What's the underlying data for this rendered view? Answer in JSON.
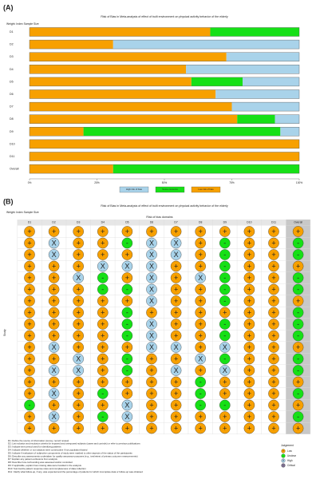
{
  "chart_data": [
    {
      "type": "bar",
      "panel_label": "(A)",
      "title": "Risk of Bias in Meta-analysis of effect of built environment on physical activity behavior of the elderly",
      "subtitle": "Weight: Index Sample Size",
      "categories": [
        "D1",
        "D2",
        "D3",
        "D4",
        "D5",
        "D6",
        "D7",
        "D8",
        "D9",
        "D10",
        "D11",
        "Overall"
      ],
      "series": [
        {
          "name": "High risk of bias",
          "color": "#a9d3ea",
          "values": [
            0,
            69,
            27,
            42,
            21,
            31,
            25,
            9,
            7,
            0,
            0,
            0
          ]
        },
        {
          "name": "Some concerns",
          "color": "#16e016",
          "values": [
            33,
            0,
            0,
            0,
            19,
            0,
            0,
            14,
            73,
            0,
            0,
            69
          ]
        },
        {
          "name": "Low risk of bias",
          "color": "#f7a000",
          "values": [
            67,
            31,
            73,
            58,
            60,
            69,
            75,
            77,
            20,
            100,
            100,
            31
          ]
        }
      ],
      "xlim": [
        0,
        100
      ],
      "xticks": [
        {
          "value": 0,
          "label": "0%"
        },
        {
          "value": 25,
          "label": "25%"
        },
        {
          "value": 50,
          "label": "50%"
        },
        {
          "value": 75,
          "label": "75%"
        },
        {
          "value": 100,
          "label": "100%"
        }
      ]
    },
    {
      "type": "traffic-light",
      "panel_label": "(B)",
      "title": "Risk of Bias in Meta-analysis of effect of built environment on physical activity behavior of the elderly",
      "subtitle": "Weight: Index Sample Size",
      "domains_title": "Risk of bias domains",
      "y_label": "Study",
      "domains": [
        "D1",
        "D2",
        "D3",
        "D4",
        "D5",
        "D6",
        "D7",
        "D8",
        "D9",
        "D10",
        "D11",
        "Overall"
      ],
      "judgements": [
        [
          "+",
          "+",
          "+",
          "+",
          "+",
          "+",
          "+",
          "+",
          "+",
          "+",
          "+",
          "+"
        ],
        [
          "+",
          "X",
          "+",
          "+",
          "-",
          "X",
          "X",
          "+",
          "-",
          "+",
          "+",
          "-"
        ],
        [
          "+",
          "X",
          "+",
          "+",
          "+",
          "X",
          "X",
          "+",
          "-",
          "+",
          "+",
          "-"
        ],
        [
          "+",
          "+",
          "+",
          "X",
          "X",
          "X",
          "+",
          "+",
          "-",
          "+",
          "+",
          "+"
        ],
        [
          "+",
          "+",
          "X",
          "-",
          "+",
          "X",
          "+",
          "X",
          "-",
          "+",
          "+",
          "-"
        ],
        [
          "+",
          "+",
          "+",
          "-",
          "-",
          "X",
          "+",
          "+",
          "-",
          "+",
          "+",
          "-"
        ],
        [
          "+",
          "+",
          "+",
          "+",
          "+",
          "X",
          "+",
          "+",
          "-",
          "+",
          "+",
          "+"
        ],
        [
          "+",
          "+",
          "+",
          "+",
          "-",
          "+",
          "+",
          "+",
          "+",
          "+",
          "+",
          "-"
        ],
        [
          "+",
          "+",
          "+",
          "+",
          "-",
          "X",
          "+",
          "+",
          "-",
          "+",
          "+",
          "-"
        ],
        [
          "+",
          "+",
          "+",
          "+",
          "-",
          "X",
          "+",
          "+",
          "-",
          "+",
          "+",
          "-"
        ],
        [
          "+",
          "X",
          "+",
          "+",
          "+",
          "X",
          "X",
          "+",
          "X",
          "+",
          "+",
          "+"
        ],
        [
          "+",
          "+",
          "X",
          "+",
          "-",
          "+",
          "+",
          "X",
          "-",
          "+",
          "+",
          "-"
        ],
        [
          "+",
          "X",
          "X",
          "+",
          "-",
          "+",
          "X",
          "+",
          "X",
          "+",
          "+",
          "-"
        ],
        [
          "+",
          "+",
          "+",
          "+",
          "+",
          "+",
          "+",
          "-",
          "+",
          "+",
          "+",
          "+"
        ],
        [
          "+",
          "X",
          "+",
          "-",
          "+",
          "+",
          "+",
          "-",
          "+",
          "+",
          "+",
          "-"
        ],
        [
          "-",
          "+",
          "+",
          "+",
          "X",
          "+",
          "+",
          "-",
          "-",
          "+",
          "+",
          "+"
        ],
        [
          "+",
          "X",
          "+",
          "-",
          "X",
          "+",
          "+",
          "+",
          "+",
          "+",
          "+",
          "-"
        ],
        [
          "+",
          "+",
          "+",
          "+",
          "+",
          "+",
          "+",
          "+",
          "+",
          "+",
          "+",
          "+"
        ]
      ],
      "domain_descriptions": [
        "D1: Define the source of information (survey, record review)",
        "D2: List inclusion and exclusion criteria for exposed and unexposed subjects (cases and controls) or refer to previous publications",
        "D3: Indicate time period used for identifying patients",
        "D4: Indicate whether or not subjects were consecutive if not population-based",
        "D5: Indicate if evaluators of subjective components of study were masked to other aspects of the status of the participants",
        "D6: Describe any assessments undertaken for quality assurance purposes (e.g., test/retest of primary outcome measurements)",
        "D7: Explain any patient exclusions from analysis",
        "D8: Describe how confounding was assessed and/or controlled",
        "D9: If applicable, explain how missing data were handled in the analysis",
        "D10: Summarize patient response rates and completeness of data collection",
        "D11: Clarify what follow-up, if any, was expected and the percentage of patients for which incomplete data or follow-up was obtained"
      ],
      "legend_title": "Judgement",
      "levels": [
        {
          "symbol": "+",
          "name": "Low",
          "color": "#f7a000"
        },
        {
          "symbol": "-",
          "name": "Unclear",
          "color": "#16e016"
        },
        {
          "symbol": "X",
          "name": "High",
          "color": "#a9d3ea"
        },
        {
          "name": "Critical",
          "color": "#7b6d8d"
        }
      ]
    }
  ]
}
